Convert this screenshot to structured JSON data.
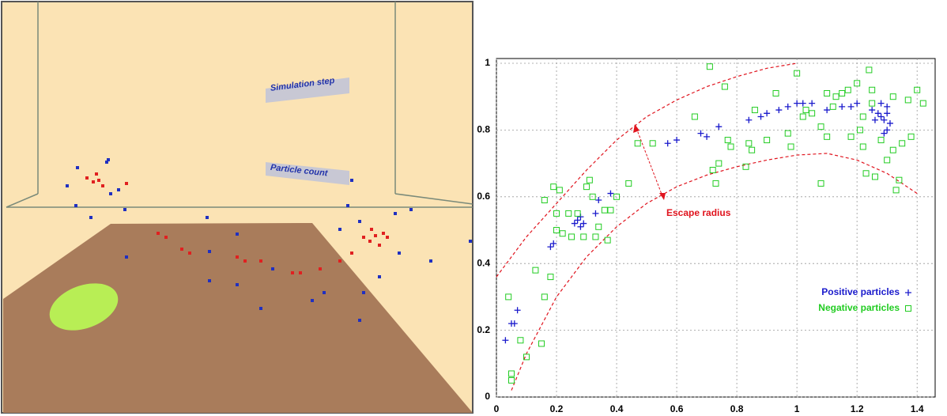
{
  "scene": {
    "labels": [
      "Simulation step",
      "Particle count"
    ]
  },
  "chart_data": {
    "type": "scatter",
    "xlim": [
      0,
      1.46
    ],
    "ylim": [
      0,
      1
    ],
    "xticks": [
      0,
      0.2,
      0.4,
      0.6,
      0.8,
      1,
      1.2,
      1.4
    ],
    "yticks": [
      0,
      0.2,
      0.4,
      0.6,
      0.8,
      1
    ],
    "grid": true,
    "legend": "lower right",
    "annotation": "Escape radius",
    "annotation_color": "#e0141e",
    "curves": [
      {
        "color": "#e0141e",
        "x": [
          0,
          0.1,
          0.2,
          0.3,
          0.4,
          0.5,
          0.6,
          0.7,
          0.8,
          0.9,
          1.0
        ],
        "y": [
          0.36,
          0.48,
          0.58,
          0.68,
          0.77,
          0.84,
          0.89,
          0.93,
          0.96,
          0.985,
          1.0
        ]
      },
      {
        "color": "#e0141e",
        "x": [
          0.05,
          0.1,
          0.2,
          0.3,
          0.4,
          0.5,
          0.6,
          0.7,
          0.8,
          0.9,
          1.0,
          1.1,
          1.2,
          1.3,
          1.4
        ],
        "y": [
          0.02,
          0.13,
          0.3,
          0.42,
          0.51,
          0.58,
          0.63,
          0.665,
          0.69,
          0.71,
          0.725,
          0.73,
          0.71,
          0.67,
          0.61
        ]
      }
    ],
    "series": [
      {
        "name": "Positive particles",
        "color": "#1a1acc",
        "marker": "plus",
        "x": [
          0.03,
          0.05,
          0.06,
          0.07,
          0.18,
          0.19,
          0.26,
          0.27,
          0.28,
          0.29,
          0.28,
          0.33,
          0.34,
          0.38,
          0.57,
          0.6,
          0.68,
          0.7,
          0.74,
          0.84,
          0.88,
          0.9,
          0.94,
          0.97,
          1.0,
          1.02,
          1.05,
          1.1,
          1.15,
          1.18,
          1.2,
          1.25,
          1.27,
          1.28,
          1.29,
          1.3,
          1.3,
          1.29,
          1.31,
          1.28,
          1.26,
          1.3
        ],
        "values": [
          0.17,
          0.22,
          0.22,
          0.26,
          0.45,
          0.46,
          0.52,
          0.53,
          0.54,
          0.52,
          0.51,
          0.55,
          0.59,
          0.61,
          0.76,
          0.77,
          0.79,
          0.78,
          0.81,
          0.83,
          0.84,
          0.85,
          0.86,
          0.87,
          0.88,
          0.88,
          0.88,
          0.86,
          0.87,
          0.87,
          0.88,
          0.86,
          0.85,
          0.84,
          0.83,
          0.87,
          0.8,
          0.79,
          0.82,
          0.88,
          0.83,
          0.85
        ]
      },
      {
        "name": "Negative particles",
        "color": "#22cc22",
        "marker": "square",
        "x": [
          0.05,
          0.05,
          0.04,
          0.08,
          0.1,
          0.13,
          0.15,
          0.16,
          0.16,
          0.18,
          0.19,
          0.2,
          0.21,
          0.2,
          0.22,
          0.24,
          0.25,
          0.27,
          0.29,
          0.3,
          0.31,
          0.32,
          0.33,
          0.34,
          0.36,
          0.37,
          0.38,
          0.4,
          0.44,
          0.47,
          0.52,
          0.66,
          0.71,
          0.72,
          0.73,
          0.74,
          0.76,
          0.77,
          0.78,
          0.83,
          0.84,
          0.85,
          0.86,
          0.9,
          0.93,
          0.97,
          0.98,
          1.0,
          1.02,
          1.03,
          1.05,
          1.08,
          1.1,
          1.1,
          1.12,
          1.13,
          1.08,
          1.15,
          1.17,
          1.2,
          1.21,
          1.22,
          1.23,
          1.24,
          1.25,
          1.26,
          1.28,
          1.3,
          1.32,
          1.33,
          1.34,
          1.35,
          1.37,
          1.38,
          1.4,
          1.42,
          1.22,
          1.18,
          1.25,
          1.32
        ],
        "values": [
          0.05,
          0.07,
          0.3,
          0.17,
          0.12,
          0.38,
          0.16,
          0.3,
          0.59,
          0.36,
          0.63,
          0.55,
          0.62,
          0.5,
          0.49,
          0.55,
          0.48,
          0.55,
          0.48,
          0.63,
          0.65,
          0.6,
          0.48,
          0.51,
          0.56,
          0.47,
          0.56,
          0.6,
          0.64,
          0.76,
          0.76,
          0.84,
          0.99,
          0.68,
          0.64,
          0.7,
          0.93,
          0.77,
          0.75,
          0.69,
          0.76,
          0.74,
          0.86,
          0.77,
          0.91,
          0.79,
          0.75,
          0.97,
          0.84,
          0.86,
          0.85,
          0.81,
          0.91,
          0.78,
          0.87,
          0.9,
          0.64,
          0.91,
          0.92,
          0.94,
          0.8,
          0.84,
          0.67,
          0.98,
          0.92,
          0.66,
          0.77,
          0.71,
          0.74,
          0.62,
          0.65,
          0.76,
          0.89,
          0.78,
          0.92,
          0.88,
          0.75,
          0.78,
          0.88,
          0.9
        ]
      }
    ]
  }
}
